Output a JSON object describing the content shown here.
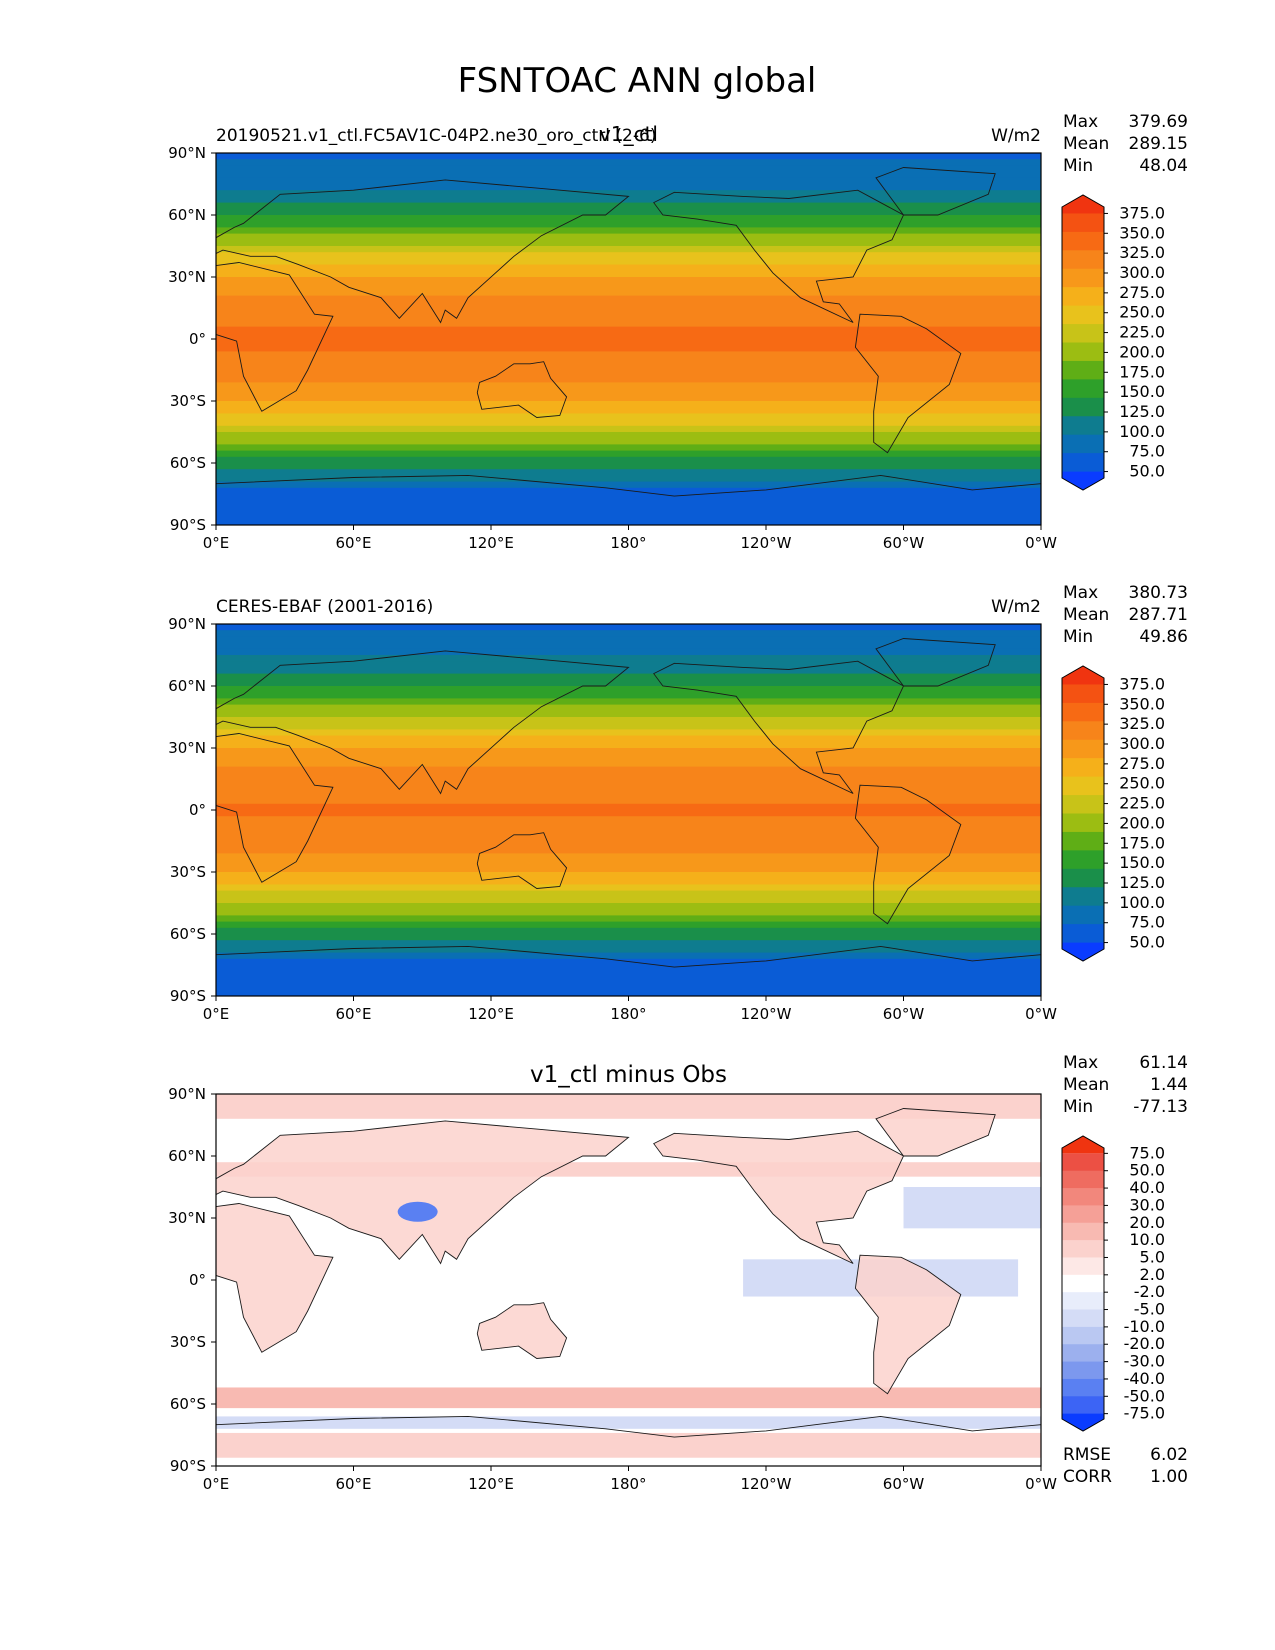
{
  "figure": {
    "title": "FSNTOAC ANN global"
  },
  "colors": {
    "seq": [
      "#0a3cff",
      "#0a5cd6",
      "#0a6fb4",
      "#0e7c8f",
      "#1a8f4a",
      "#2ea02a",
      "#5fae16",
      "#9cbd12",
      "#c8c318",
      "#e8c21c",
      "#f5b01a",
      "#f7981a",
      "#f7841a",
      "#f76a14",
      "#f45212",
      "#f03410"
    ],
    "diff": [
      "#0a3cff",
      "#3c64f5",
      "#5a80f2",
      "#7c98ee",
      "#9cb0ee",
      "#bac8f2",
      "#d4dcf6",
      "#e8edfb",
      "#ffffff",
      "#fde8e6",
      "#fbd2cd",
      "#f8bab2",
      "#f5a097",
      "#f2877c",
      "#ef6c60",
      "#ec5044",
      "#f03410"
    ]
  },
  "panels": [
    {
      "left_label": "20190521.v1_ctl.FC5AV1C-04P2.ne30_oro_ctrl (2-6)",
      "center_label": "v1_ctl",
      "units": "W/m2",
      "stats": {
        "max_label": "Max",
        "max": "379.69",
        "mean_label": "Mean",
        "mean": "289.15",
        "min_label": "Min",
        "min": "48.04"
      },
      "colorbar": [
        "375.0",
        "350.0",
        "325.0",
        "300.0",
        "275.0",
        "250.0",
        "225.0",
        "200.0",
        "175.0",
        "150.0",
        "125.0",
        "100.0",
        "75.0",
        "50.0"
      ]
    },
    {
      "left_label": "CERES-EBAF (2001-2016)",
      "center_label": "",
      "units": "W/m2",
      "stats": {
        "max_label": "Max",
        "max": "380.73",
        "mean_label": "Mean",
        "mean": "287.71",
        "min_label": "Min",
        "min": "49.86"
      },
      "colorbar": [
        "375.0",
        "350.0",
        "325.0",
        "300.0",
        "275.0",
        "250.0",
        "225.0",
        "200.0",
        "175.0",
        "150.0",
        "125.0",
        "100.0",
        "75.0",
        "50.0"
      ]
    },
    {
      "left_label": "",
      "center_label": "v1_ctl minus Obs",
      "units": "",
      "stats": {
        "max_label": "Max",
        "max": "61.14",
        "mean_label": "Mean",
        "mean": "1.44",
        "min_label": "Min",
        "min": "-77.13"
      },
      "colorbar": [
        "75.0",
        "50.0",
        "40.0",
        "30.0",
        "20.0",
        "10.0",
        "5.0",
        "2.0",
        "-2.0",
        "-5.0",
        "-10.0",
        "-20.0",
        "-30.0",
        "-40.0",
        "-50.0",
        "-75.0"
      ],
      "rmse_label": "RMSE",
      "rmse": "6.02",
      "corr_label": "CORR",
      "corr": "1.00"
    }
  ],
  "chart_data": [
    {
      "type": "heatmap",
      "title": "v1_ctl",
      "units": "W/m2",
      "xlim": [
        0,
        360
      ],
      "ylim": [
        -90,
        90
      ],
      "xticks": [
        "0°E",
        "60°E",
        "120°E",
        "180°",
        "120°W",
        "60°W",
        "0°W"
      ],
      "yticks": [
        "90°N",
        "60°N",
        "30°N",
        "0°",
        "30°S",
        "60°S",
        "90°S"
      ],
      "levels": [
        50,
        75,
        100,
        125,
        150,
        175,
        200,
        225,
        250,
        275,
        300,
        325,
        350,
        375
      ],
      "zonal_profile": {
        "lat": [
          90,
          75,
          60,
          45,
          30,
          15,
          0,
          -15,
          -30,
          -45,
          -60,
          -75,
          -90
        ],
        "value": [
          70,
          90,
          150,
          230,
          300,
          340,
          355,
          340,
          300,
          230,
          140,
          60,
          50
        ]
      }
    },
    {
      "type": "heatmap",
      "title": "CERES-EBAF (2001-2016)",
      "units": "W/m2",
      "xlim": [
        0,
        360
      ],
      "ylim": [
        -90,
        90
      ],
      "xticks": [
        "0°E",
        "60°E",
        "120°E",
        "180°",
        "120°W",
        "60°W",
        "0°W"
      ],
      "yticks": [
        "90°N",
        "60°N",
        "30°N",
        "0°",
        "30°S",
        "60°S",
        "90°S"
      ],
      "levels": [
        50,
        75,
        100,
        125,
        150,
        175,
        200,
        225,
        250,
        275,
        300,
        325,
        350,
        375
      ],
      "zonal_profile": {
        "lat": [
          90,
          75,
          60,
          45,
          30,
          15,
          0,
          -15,
          -30,
          -45,
          -60,
          -75,
          -90
        ],
        "value": [
          72,
          95,
          150,
          228,
          298,
          338,
          352,
          338,
          298,
          228,
          140,
          60,
          52
        ]
      }
    },
    {
      "type": "heatmap",
      "title": "v1_ctl minus Obs",
      "xlim": [
        0,
        360
      ],
      "ylim": [
        -90,
        90
      ],
      "xticks": [
        "0°E",
        "60°E",
        "120°E",
        "180°",
        "120°W",
        "60°W",
        "0°W"
      ],
      "yticks": [
        "90°N",
        "60°N",
        "30°N",
        "0°",
        "30°S",
        "60°S",
        "90°S"
      ],
      "levels": [
        -75,
        -50,
        -40,
        -30,
        -20,
        -10,
        -5,
        -2,
        2,
        5,
        10,
        20,
        30,
        40,
        50,
        75
      ]
    }
  ]
}
